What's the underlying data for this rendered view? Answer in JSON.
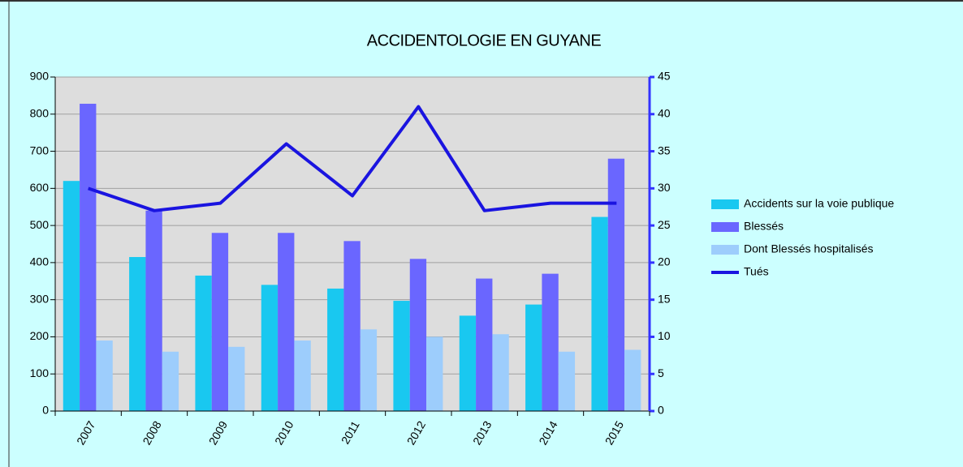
{
  "chart_data": {
    "type": "bar",
    "title": "ACCIDENTOLOGIE EN GUYANE",
    "categories": [
      "2007",
      "2008",
      "2009",
      "2010",
      "2011",
      "2012",
      "2013",
      "2014",
      "2015"
    ],
    "series": [
      {
        "name": "Accidents sur la voie publique",
        "color": "#19c8f0",
        "values": [
          620,
          415,
          365,
          340,
          330,
          297,
          257,
          287,
          523
        ]
      },
      {
        "name": "Blessés",
        "color": "#6a66ff",
        "values": [
          828,
          540,
          480,
          480,
          458,
          410,
          357,
          370,
          680
        ]
      },
      {
        "name": "Dont Blessés hospitalisés",
        "color": "#9dcdfc",
        "values": [
          190,
          160,
          173,
          190,
          220,
          200,
          207,
          160,
          165
        ]
      },
      {
        "name": "Tués",
        "color": "#1a14e0",
        "type": "line",
        "axis": "y2",
        "values": [
          30,
          27,
          28,
          36,
          29,
          41,
          27,
          28,
          28
        ]
      }
    ],
    "ylim": [
      0,
      900
    ],
    "yticks": [
      0,
      100,
      200,
      300,
      400,
      500,
      600,
      700,
      800,
      900
    ],
    "y2lim": [
      0,
      45
    ],
    "y2ticks": [
      0,
      5,
      10,
      15,
      20,
      25,
      30,
      35,
      40,
      45
    ],
    "grid": true,
    "legend": "right"
  }
}
